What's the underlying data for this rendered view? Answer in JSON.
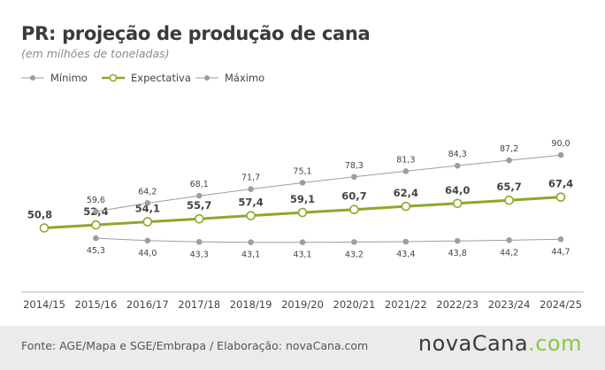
{
  "title": "PR: projeção de produção de cana",
  "subtitle": "(em milhões de toneladas)",
  "footer": {
    "source": "Fonte: AGE/Mapa e SGE/Embrapa / Elaboração: novaCana.com",
    "brand_main": "novaCana",
    "brand_suffix": ".com"
  },
  "colors": {
    "min_max": "#9e9e9e",
    "expectativa": "#8aaa2a",
    "grid_axis": "#b5b5b5",
    "footer_bg": "#ebebeb",
    "brand_accent": "#8cc63f"
  },
  "chart_data": {
    "type": "line",
    "categories": [
      "2014/15",
      "2015/16",
      "2016/17",
      "2017/18",
      "2018/19",
      "2019/20",
      "2020/21",
      "2021/22",
      "2022/23",
      "2023/24",
      "2024/25"
    ],
    "series": [
      {
        "name": "Mínimo",
        "values": [
          null,
          45.3,
          44.0,
          43.3,
          43.1,
          43.1,
          43.2,
          43.4,
          43.8,
          44.2,
          44.7
        ],
        "labels": [
          null,
          "45,3",
          "44,0",
          "43,3",
          "43,1",
          "43,1",
          "43,2",
          "43,4",
          "43,8",
          "44,2",
          "44,7"
        ]
      },
      {
        "name": "Expectativa",
        "values": [
          50.8,
          52.4,
          54.1,
          55.7,
          57.4,
          59.1,
          60.7,
          62.4,
          64.0,
          65.7,
          67.4
        ],
        "labels": [
          "50,8",
          "52,4",
          "54,1",
          "55,7",
          "57,4",
          "59,1",
          "60,7",
          "62,4",
          "64,0",
          "65,7",
          "67,4"
        ]
      },
      {
        "name": "Máximo",
        "values": [
          null,
          59.6,
          64.2,
          68.1,
          71.7,
          75.1,
          78.3,
          81.3,
          84.3,
          87.2,
          90.0
        ],
        "labels": [
          null,
          "59,6",
          "64,2",
          "68,1",
          "71,7",
          "75,1",
          "78,3",
          "81,3",
          "84,3",
          "87,2",
          "90,0"
        ]
      }
    ],
    "legend_position": "top-left",
    "grid": false
  }
}
